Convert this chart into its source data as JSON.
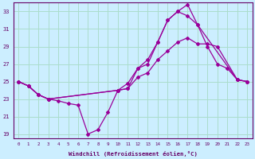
{
  "xlabel": "Windchill (Refroidissement éolien,°C)",
  "bg_color": "#cceeff",
  "grid_color": "#aaddcc",
  "line_color": "#990099",
  "xlim": [
    -0.5,
    23.5
  ],
  "ylim": [
    18.5,
    34
  ],
  "yticks": [
    19,
    21,
    23,
    25,
    27,
    29,
    31,
    33
  ],
  "xticks": [
    0,
    1,
    2,
    3,
    4,
    5,
    6,
    7,
    8,
    9,
    10,
    11,
    12,
    13,
    14,
    15,
    16,
    17,
    18,
    19,
    20,
    21,
    22,
    23
  ],
  "series": [
    {
      "x": [
        0,
        1,
        2,
        3,
        4,
        5,
        6,
        7,
        8,
        9,
        10,
        11,
        12,
        13,
        14,
        15,
        16,
        17,
        18,
        19,
        20,
        21,
        22,
        23
      ],
      "y": [
        25.0,
        24.5,
        23.5,
        23.0,
        22.8,
        22.5,
        22.3,
        19.0,
        19.5,
        21.5,
        24.0,
        24.8,
        26.5,
        27.0,
        29.5,
        32.0,
        33.0,
        33.8,
        31.5,
        29.0,
        27.0,
        26.5,
        25.2,
        25.0
      ]
    },
    {
      "x": [
        0,
        1,
        2,
        3,
        10,
        11,
        12,
        13,
        14,
        15,
        16,
        17,
        18,
        22,
        23
      ],
      "y": [
        25.0,
        24.5,
        23.5,
        23.0,
        24.0,
        24.2,
        26.5,
        27.5,
        29.5,
        32.0,
        33.0,
        32.5,
        31.5,
        25.2,
        25.0
      ]
    },
    {
      "x": [
        0,
        1,
        2,
        3,
        10,
        11,
        12,
        13,
        14,
        15,
        16,
        17,
        18,
        19,
        20,
        22,
        23
      ],
      "y": [
        25.0,
        24.5,
        23.5,
        23.0,
        24.0,
        24.2,
        25.5,
        26.0,
        27.5,
        28.5,
        29.5,
        30.0,
        29.3,
        29.3,
        29.0,
        25.2,
        25.0
      ]
    }
  ]
}
